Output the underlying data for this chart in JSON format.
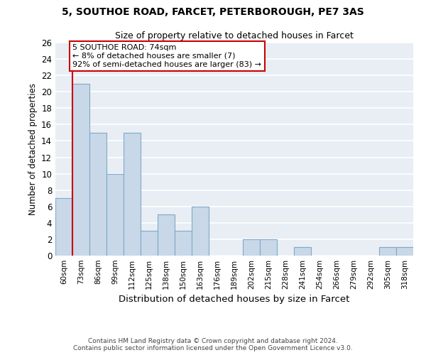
{
  "title1": "5, SOUTHOE ROAD, FARCET, PETERBOROUGH, PE7 3AS",
  "title2": "Size of property relative to detached houses in Farcet",
  "xlabel": "Distribution of detached houses by size in Farcet",
  "ylabel": "Number of detached properties",
  "bin_labels": [
    "60sqm",
    "73sqm",
    "86sqm",
    "99sqm",
    "112sqm",
    "125sqm",
    "138sqm",
    "150sqm",
    "163sqm",
    "176sqm",
    "189sqm",
    "202sqm",
    "215sqm",
    "228sqm",
    "241sqm",
    "254sqm",
    "266sqm",
    "279sqm",
    "292sqm",
    "305sqm",
    "318sqm"
  ],
  "bar_heights": [
    7,
    21,
    15,
    10,
    15,
    3,
    5,
    3,
    6,
    0,
    0,
    2,
    2,
    0,
    1,
    0,
    0,
    0,
    0,
    1,
    1
  ],
  "bar_color": "#c8d8e8",
  "bar_edge_color": "#7fa8c8",
  "highlight_line_color": "#cc0000",
  "ylim": [
    0,
    26
  ],
  "yticks": [
    0,
    2,
    4,
    6,
    8,
    10,
    12,
    14,
    16,
    18,
    20,
    22,
    24,
    26
  ],
  "annotation_line1": "5 SOUTHOE ROAD: 74sqm",
  "annotation_line2": "← 8% of detached houses are smaller (7)",
  "annotation_line3": "92% of semi-detached houses are larger (83) →",
  "annotation_box_color": "#ffffff",
  "annotation_box_edge": "#cc0000",
  "footer1": "Contains HM Land Registry data © Crown copyright and database right 2024.",
  "footer2": "Contains public sector information licensed under the Open Government Licence v3.0.",
  "bg_color": "#e8eef4"
}
